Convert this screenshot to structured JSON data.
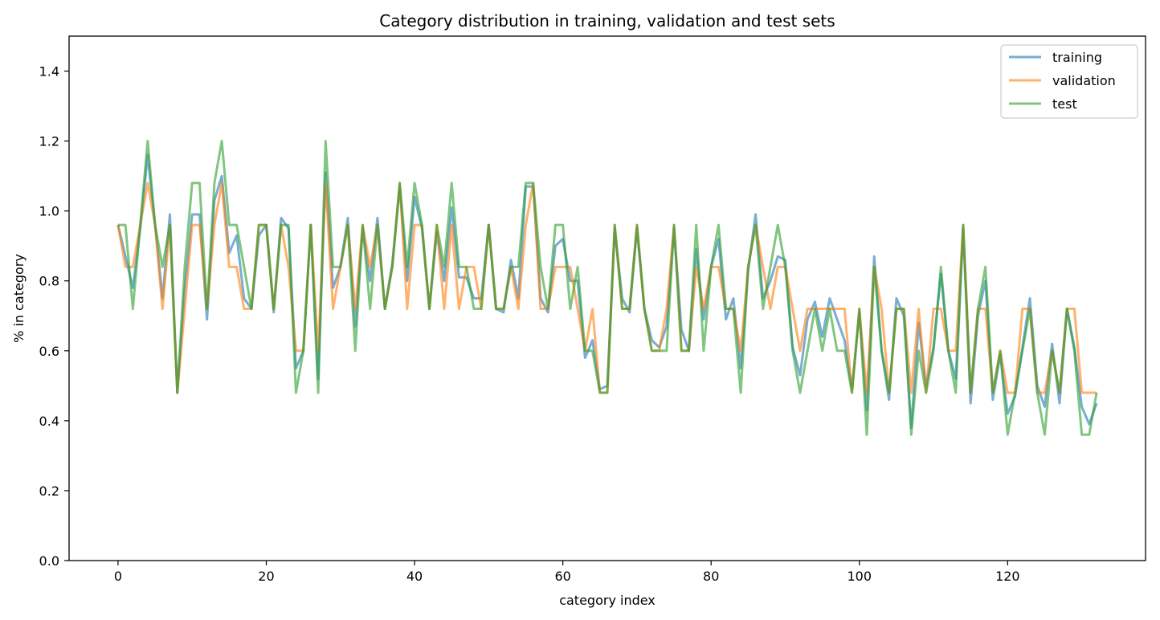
{
  "chart_data": {
    "type": "line",
    "title": "Category distribution in training, validation and test sets",
    "xlabel": "category index",
    "ylabel": "% in category",
    "xlim": [
      -6.6,
      138.6
    ],
    "ylim": [
      0,
      1.5
    ],
    "xticks": [
      0,
      20,
      40,
      60,
      80,
      100,
      120
    ],
    "yticks": [
      0.0,
      0.2,
      0.4,
      0.6,
      0.8,
      1.0,
      1.2,
      1.4
    ],
    "ytick_labels": [
      "0.0",
      "0.2",
      "0.4",
      "0.6",
      "0.8",
      "1.0",
      "1.2",
      "1.4"
    ],
    "grid": false,
    "legend_position": "top-right",
    "x": [
      0,
      1,
      2,
      3,
      4,
      5,
      6,
      7,
      8,
      9,
      10,
      11,
      12,
      13,
      14,
      15,
      16,
      17,
      18,
      19,
      20,
      21,
      22,
      23,
      24,
      25,
      26,
      27,
      28,
      29,
      30,
      31,
      32,
      33,
      34,
      35,
      36,
      37,
      38,
      39,
      40,
      41,
      42,
      43,
      44,
      45,
      46,
      47,
      48,
      49,
      50,
      51,
      52,
      53,
      54,
      55,
      56,
      57,
      58,
      59,
      60,
      61,
      62,
      63,
      64,
      65,
      66,
      67,
      68,
      69,
      70,
      71,
      72,
      73,
      74,
      75,
      76,
      77,
      78,
      79,
      80,
      81,
      82,
      83,
      84,
      85,
      86,
      87,
      88,
      89,
      90,
      91,
      92,
      93,
      94,
      95,
      96,
      97,
      98,
      99,
      100,
      101,
      102,
      103,
      104,
      105,
      106,
      107,
      108,
      109,
      110,
      111,
      112,
      113,
      114,
      115,
      116,
      117,
      118,
      119,
      120,
      121,
      122,
      123,
      124,
      125,
      126,
      127,
      128,
      129,
      130,
      131,
      132
    ],
    "series": [
      {
        "name": "training",
        "color": "#1f77b4",
        "values": [
          0.96,
          0.87,
          0.78,
          0.95,
          1.16,
          0.96,
          0.75,
          0.99,
          0.48,
          0.78,
          0.99,
          0.99,
          0.69,
          1.03,
          1.1,
          0.88,
          0.93,
          0.75,
          0.72,
          0.93,
          0.96,
          0.71,
          0.98,
          0.95,
          0.55,
          0.6,
          0.96,
          0.52,
          1.11,
          0.78,
          0.84,
          0.98,
          0.67,
          0.95,
          0.8,
          0.98,
          0.72,
          0.85,
          1.07,
          0.8,
          1.04,
          0.95,
          0.72,
          0.94,
          0.8,
          1.01,
          0.81,
          0.81,
          0.75,
          0.75,
          0.96,
          0.72,
          0.71,
          0.86,
          0.75,
          1.07,
          1.07,
          0.75,
          0.71,
          0.9,
          0.92,
          0.8,
          0.8,
          0.58,
          0.63,
          0.49,
          0.5,
          0.95,
          0.75,
          0.71,
          0.95,
          0.72,
          0.63,
          0.61,
          0.67,
          0.95,
          0.66,
          0.6,
          0.89,
          0.69,
          0.84,
          0.92,
          0.69,
          0.75,
          0.55,
          0.83,
          0.99,
          0.75,
          0.8,
          0.87,
          0.86,
          0.61,
          0.53,
          0.69,
          0.74,
          0.64,
          0.75,
          0.69,
          0.63,
          0.49,
          0.71,
          0.43,
          0.87,
          0.6,
          0.46,
          0.75,
          0.7,
          0.38,
          0.68,
          0.5,
          0.61,
          0.82,
          0.6,
          0.52,
          0.95,
          0.45,
          0.7,
          0.8,
          0.46,
          0.59,
          0.42,
          0.47,
          0.61,
          0.75,
          0.5,
          0.44,
          0.62,
          0.45,
          0.72,
          0.61,
          0.44,
          0.39,
          0.45
        ]
      },
      {
        "name": "validation",
        "color": "#ff7f0e",
        "values": [
          0.96,
          0.84,
          0.84,
          0.96,
          1.08,
          0.96,
          0.72,
          0.96,
          0.48,
          0.72,
          0.96,
          0.96,
          0.72,
          0.96,
          1.08,
          0.84,
          0.84,
          0.72,
          0.72,
          0.96,
          0.96,
          0.72,
          0.96,
          0.84,
          0.6,
          0.6,
          0.96,
          0.6,
          1.08,
          0.72,
          0.84,
          0.96,
          0.72,
          0.96,
          0.84,
          0.96,
          0.72,
          0.84,
          1.08,
          0.72,
          0.96,
          0.96,
          0.72,
          0.96,
          0.72,
          0.96,
          0.72,
          0.84,
          0.84,
          0.72,
          0.96,
          0.72,
          0.72,
          0.84,
          0.72,
          0.96,
          1.08,
          0.72,
          0.72,
          0.84,
          0.84,
          0.84,
          0.72,
          0.6,
          0.72,
          0.48,
          0.48,
          0.96,
          0.72,
          0.72,
          0.96,
          0.72,
          0.6,
          0.6,
          0.72,
          0.96,
          0.6,
          0.6,
          0.84,
          0.72,
          0.84,
          0.84,
          0.72,
          0.72,
          0.6,
          0.84,
          0.96,
          0.84,
          0.72,
          0.84,
          0.84,
          0.72,
          0.6,
          0.72,
          0.72,
          0.72,
          0.72,
          0.72,
          0.72,
          0.48,
          0.72,
          0.48,
          0.84,
          0.72,
          0.48,
          0.72,
          0.72,
          0.48,
          0.72,
          0.48,
          0.72,
          0.72,
          0.6,
          0.6,
          0.96,
          0.48,
          0.72,
          0.72,
          0.48,
          0.6,
          0.48,
          0.48,
          0.72,
          0.72,
          0.48,
          0.48,
          0.6,
          0.48,
          0.72,
          0.72,
          0.48,
          0.48,
          0.48
        ]
      },
      {
        "name": "test",
        "color": "#2ca02c",
        "values": [
          0.96,
          0.96,
          0.72,
          0.96,
          1.2,
          0.96,
          0.84,
          0.96,
          0.48,
          0.84,
          1.08,
          1.08,
          0.72,
          1.08,
          1.2,
          0.96,
          0.96,
          0.84,
          0.72,
          0.96,
          0.96,
          0.72,
          0.96,
          0.96,
          0.48,
          0.6,
          0.96,
          0.48,
          1.2,
          0.84,
          0.84,
          0.96,
          0.6,
          0.96,
          0.72,
          0.96,
          0.72,
          0.84,
          1.08,
          0.84,
          1.08,
          0.96,
          0.72,
          0.96,
          0.84,
          1.08,
          0.84,
          0.84,
          0.72,
          0.72,
          0.96,
          0.72,
          0.72,
          0.84,
          0.84,
          1.08,
          1.08,
          0.84,
          0.72,
          0.96,
          0.96,
          0.72,
          0.84,
          0.6,
          0.6,
          0.48,
          0.48,
          0.96,
          0.72,
          0.72,
          0.96,
          0.72,
          0.6,
          0.6,
          0.6,
          0.96,
          0.6,
          0.6,
          0.96,
          0.6,
          0.84,
          0.96,
          0.72,
          0.72,
          0.48,
          0.84,
          0.96,
          0.72,
          0.84,
          0.96,
          0.84,
          0.6,
          0.48,
          0.6,
          0.72,
          0.6,
          0.72,
          0.6,
          0.6,
          0.48,
          0.72,
          0.36,
          0.84,
          0.6,
          0.48,
          0.72,
          0.72,
          0.36,
          0.6,
          0.48,
          0.6,
          0.84,
          0.6,
          0.48,
          0.96,
          0.48,
          0.72,
          0.84,
          0.48,
          0.6,
          0.36,
          0.48,
          0.6,
          0.72,
          0.48,
          0.36,
          0.6,
          0.48,
          0.72,
          0.6,
          0.36,
          0.36,
          0.48
        ]
      }
    ]
  }
}
